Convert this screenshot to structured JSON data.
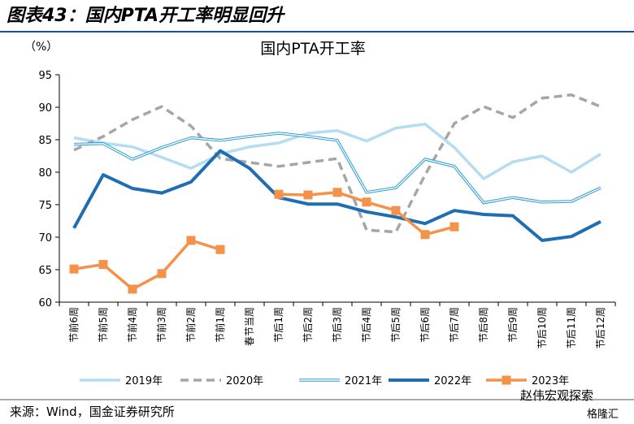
{
  "header": "图表43：国内PTA开工率明显回升",
  "chart_data": {
    "type": "line",
    "title": "国内PTA开工率",
    "y_label": "（%）",
    "categories": [
      "节前6周",
      "节前5周",
      "节前4周",
      "节前3周",
      "节前2周",
      "节前1周",
      "春节当周",
      "节后1周",
      "节后2周",
      "节后3周",
      "节后4周",
      "节后5周",
      "节后6周",
      "节后7周",
      "节后8周",
      "节后9周",
      "节后10周",
      "节后11周",
      "节后12周"
    ],
    "ylim": [
      60,
      95
    ],
    "yticks": [
      60,
      65,
      70,
      75,
      80,
      85,
      90,
      95
    ],
    "series": [
      {
        "name": "2019年",
        "color": "#b4dcf3",
        "style": "solid",
        "values": [
          85.3,
          84.5,
          83.9,
          82.3,
          80.6,
          82.8,
          83.9,
          84.5,
          86,
          86.4,
          84.8,
          86.8,
          87.4,
          83.8,
          79,
          81.6,
          82.5,
          80,
          82.8
        ]
      },
      {
        "name": "2020年",
        "color": "#a6a6a6",
        "style": "dashed",
        "values": [
          83.4,
          85.5,
          88.1,
          90.1,
          87.1,
          82.1,
          81.5,
          80.9,
          81.5,
          82.1,
          71.1,
          70.8,
          79.6,
          87.5,
          90.1,
          88.4,
          91.4,
          91.9,
          90.1
        ]
      },
      {
        "name": "2021年",
        "color": "#2e9fd8",
        "style": "double",
        "values": [
          84.3,
          84.4,
          82,
          83.8,
          85.3,
          84.9,
          85.5,
          86,
          85.5,
          84.9,
          76.9,
          77.6,
          82,
          80.9,
          75.3,
          76.1,
          75.4,
          75.5,
          77.6
        ]
      },
      {
        "name": "2022年",
        "color": "#1f6db3",
        "style": "thick",
        "values": [
          71.4,
          79.6,
          77.5,
          76.8,
          78.5,
          83.3,
          80.6,
          76.1,
          75.1,
          75.1,
          73.9,
          73.1,
          72.1,
          74.1,
          73.5,
          73.3,
          69.5,
          70.1,
          72.4
        ]
      },
      {
        "name": "2023年",
        "color": "#f4924a",
        "style": "marker",
        "values": [
          65.1,
          65.8,
          62,
          64.4,
          69.5,
          68.1,
          null,
          76.6,
          76.5,
          76.9,
          75.4,
          74.1,
          70.4,
          71.6,
          null,
          null,
          null,
          null,
          null
        ]
      }
    ]
  },
  "source": "来源：Wind，国金证券研究所",
  "watermark": "赵伟宏观探索",
  "watermark_logo": "格隆汇"
}
